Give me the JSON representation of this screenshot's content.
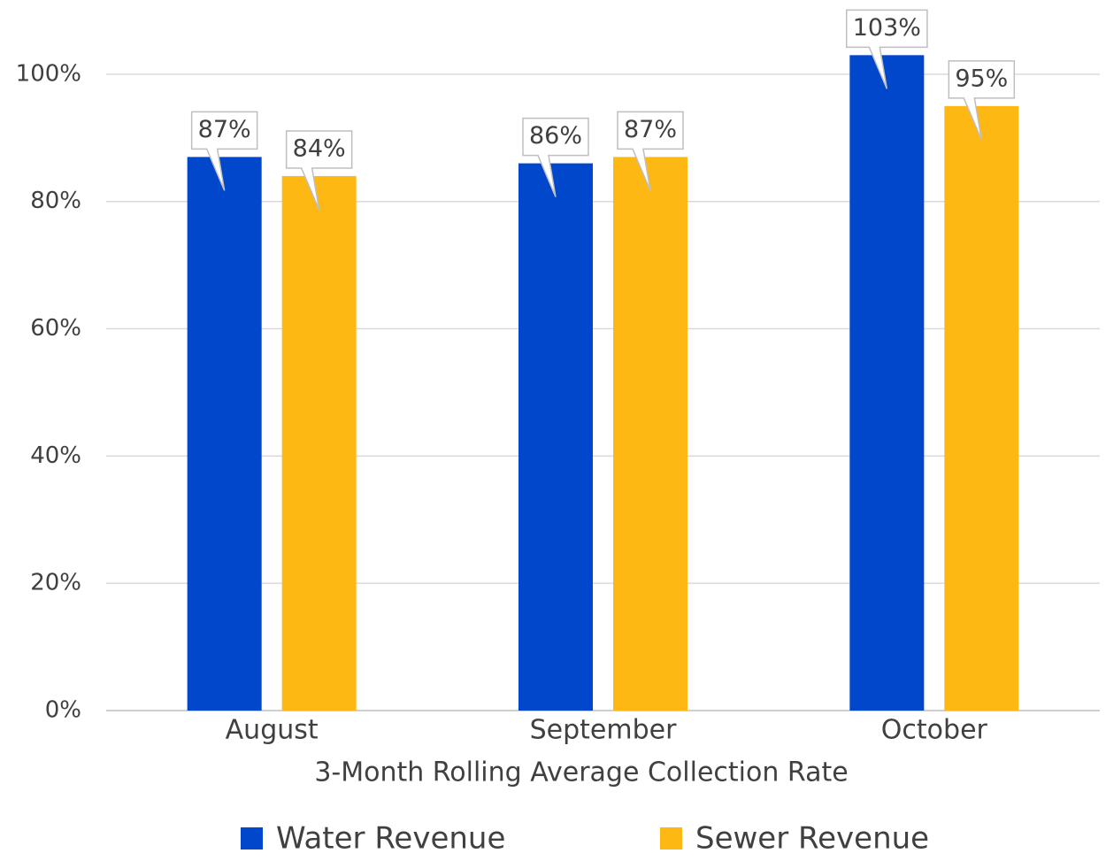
{
  "chart_data": {
    "type": "bar",
    "x_label": "3-Month Rolling Average Collection Rate",
    "categories": [
      "August",
      "September",
      "October"
    ],
    "series": [
      {
        "name": "Water Revenue",
        "color": "#0047cc",
        "values": [
          87,
          86,
          103
        ],
        "value_labels": [
          "87%",
          "86%",
          "103%"
        ]
      },
      {
        "name": "Sewer Revenue",
        "color": "#fdb813",
        "values": [
          84,
          87,
          95
        ],
        "value_labels": [
          "84%",
          "87%",
          "95%"
        ]
      }
    ],
    "ylim": [
      0,
      110
    ],
    "yticks": [
      {
        "value": 0,
        "label": "0%"
      },
      {
        "value": 20,
        "label": "20%"
      },
      {
        "value": 40,
        "label": "40%"
      },
      {
        "value": 60,
        "label": "60%"
      },
      {
        "value": 80,
        "label": "80%"
      },
      {
        "value": 100,
        "label": "100%"
      }
    ],
    "grid": true,
    "legend": "bottom"
  }
}
